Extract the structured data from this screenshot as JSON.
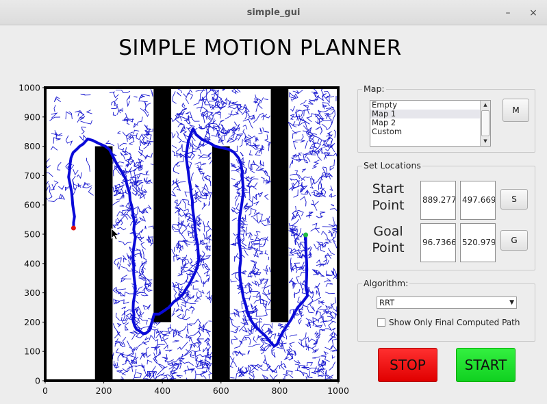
{
  "window": {
    "title": "simple_gui",
    "minimize_glyph": "–",
    "close_glyph": "×"
  },
  "heading": "SIMPLE MOTION PLANNER",
  "map_group": {
    "label": "Map:",
    "options": [
      "Empty",
      "Map 1",
      "Map 2",
      "Custom"
    ],
    "selected": "Map 1",
    "button_label": "M"
  },
  "locations_group": {
    "label": "Set Locations",
    "start_label_line1": "Start",
    "start_label_line2": "Point",
    "start_x": "889.277",
    "start_y": "497.669",
    "start_button": "S",
    "goal_label_line1": "Goal",
    "goal_label_line2": "Point",
    "goal_x": "96.7366",
    "goal_y": "520.979",
    "goal_button": "G"
  },
  "algorithm_group": {
    "label": "Algorithm:",
    "selected": "RRT",
    "show_final_label": "Show Only Final Computed Path",
    "show_final_checked": false
  },
  "actions": {
    "stop_label": "STOP",
    "start_label": "START"
  },
  "chart_data": {
    "type": "scatter",
    "xlim": [
      0,
      1000
    ],
    "ylim": [
      0,
      1000
    ],
    "x_ticks": [
      0,
      200,
      400,
      600,
      800,
      1000
    ],
    "y_ticks": [
      0,
      100,
      200,
      300,
      400,
      500,
      600,
      700,
      800,
      900,
      1000
    ],
    "grid": false,
    "colors": {
      "obstacle": "#000000",
      "tree": "#1a1ad0",
      "path": "#0a0ad8",
      "start": "#22bb44",
      "goal": "#e01010"
    },
    "obstacles": [
      {
        "x0": 170,
        "x1": 230,
        "y0": 0,
        "y1": 800
      },
      {
        "x0": 370,
        "x1": 430,
        "y0": 200,
        "y1": 1000
      },
      {
        "x0": 570,
        "x1": 630,
        "y0": 0,
        "y1": 800
      },
      {
        "x0": 770,
        "x1": 830,
        "y0": 200,
        "y1": 1000
      }
    ],
    "start": {
      "x": 889.277,
      "y": 497.669
    },
    "goal": {
      "x": 96.7366,
      "y": 520.979
    },
    "path": [
      [
        889,
        498
      ],
      [
        889,
        470
      ],
      [
        890,
        440
      ],
      [
        892,
        410
      ],
      [
        893,
        380
      ],
      [
        892,
        350
      ],
      [
        891,
        320
      ],
      [
        895,
        290
      ],
      [
        880,
        270
      ],
      [
        862,
        250
      ],
      [
        850,
        230
      ],
      [
        840,
        210
      ],
      [
        828,
        192
      ],
      [
        812,
        168
      ],
      [
        800,
        145
      ],
      [
        792,
        125
      ],
      [
        782,
        118
      ],
      [
        770,
        130
      ],
      [
        752,
        152
      ],
      [
        735,
        168
      ],
      [
        714,
        188
      ],
      [
        700,
        210
      ],
      [
        690,
        235
      ],
      [
        684,
        260
      ],
      [
        676,
        285
      ],
      [
        672,
        310
      ],
      [
        667,
        335
      ],
      [
        664,
        360
      ],
      [
        664,
        385
      ],
      [
        667,
        410
      ],
      [
        667,
        435
      ],
      [
        664,
        460
      ],
      [
        660,
        485
      ],
      [
        662,
        510
      ],
      [
        662,
        535
      ],
      [
        664,
        560
      ],
      [
        668,
        585
      ],
      [
        672,
        610
      ],
      [
        675,
        635
      ],
      [
        676,
        660
      ],
      [
        673,
        690
      ],
      [
        672,
        715
      ],
      [
        668,
        740
      ],
      [
        660,
        760
      ],
      [
        644,
        780
      ],
      [
        626,
        790
      ],
      [
        606,
        794
      ],
      [
        580,
        800
      ],
      [
        560,
        812
      ],
      [
        536,
        823
      ],
      [
        515,
        840
      ],
      [
        505,
        860
      ],
      [
        496,
        840
      ],
      [
        488,
        815
      ],
      [
        484,
        790
      ],
      [
        481,
        765
      ],
      [
        484,
        740
      ],
      [
        488,
        715
      ],
      [
        491,
        690
      ],
      [
        495,
        665
      ],
      [
        498,
        640
      ],
      [
        502,
        615
      ],
      [
        503,
        590
      ],
      [
        506,
        565
      ],
      [
        510,
        540
      ],
      [
        512,
        515
      ],
      [
        515,
        490
      ],
      [
        520,
        465
      ],
      [
        522,
        440
      ],
      [
        524,
        415
      ],
      [
        520,
        390
      ],
      [
        512,
        370
      ],
      [
        502,
        350
      ],
      [
        492,
        330
      ],
      [
        482,
        315
      ],
      [
        470,
        295
      ],
      [
        455,
        280
      ],
      [
        440,
        270
      ],
      [
        422,
        250
      ],
      [
        405,
        238
      ],
      [
        388,
        227
      ],
      [
        372,
        227
      ],
      [
        356,
        172
      ],
      [
        344,
        162
      ],
      [
        335,
        160
      ],
      [
        321,
        170
      ],
      [
        312,
        175
      ],
      [
        305,
        188
      ],
      [
        300,
        205
      ],
      [
        303,
        225
      ],
      [
        300,
        245
      ],
      [
        301,
        268
      ],
      [
        305,
        290
      ],
      [
        308,
        315
      ],
      [
        305,
        340
      ],
      [
        302,
        365
      ],
      [
        302,
        390
      ],
      [
        300,
        415
      ],
      [
        300,
        440
      ],
      [
        304,
        465
      ],
      [
        308,
        490
      ],
      [
        302,
        515
      ],
      [
        305,
        540
      ],
      [
        300,
        565
      ],
      [
        297,
        590
      ],
      [
        290,
        615
      ],
      [
        288,
        640
      ],
      [
        280,
        665
      ],
      [
        274,
        690
      ],
      [
        262,
        712
      ],
      [
        250,
        730
      ],
      [
        240,
        748
      ],
      [
        230,
        768
      ],
      [
        220,
        788
      ],
      [
        205,
        800
      ],
      [
        182,
        810
      ],
      [
        162,
        820
      ],
      [
        145,
        825
      ],
      [
        130,
        808
      ],
      [
        118,
        800
      ],
      [
        108,
        790
      ],
      [
        95,
        778
      ],
      [
        88,
        760
      ],
      [
        85,
        740
      ],
      [
        83,
        715
      ],
      [
        80,
        695
      ],
      [
        85,
        670
      ],
      [
        90,
        645
      ],
      [
        92,
        625
      ],
      [
        94,
        600
      ],
      [
        97,
        580
      ],
      [
        100,
        560
      ],
      [
        97,
        540
      ],
      [
        97,
        521
      ]
    ]
  }
}
